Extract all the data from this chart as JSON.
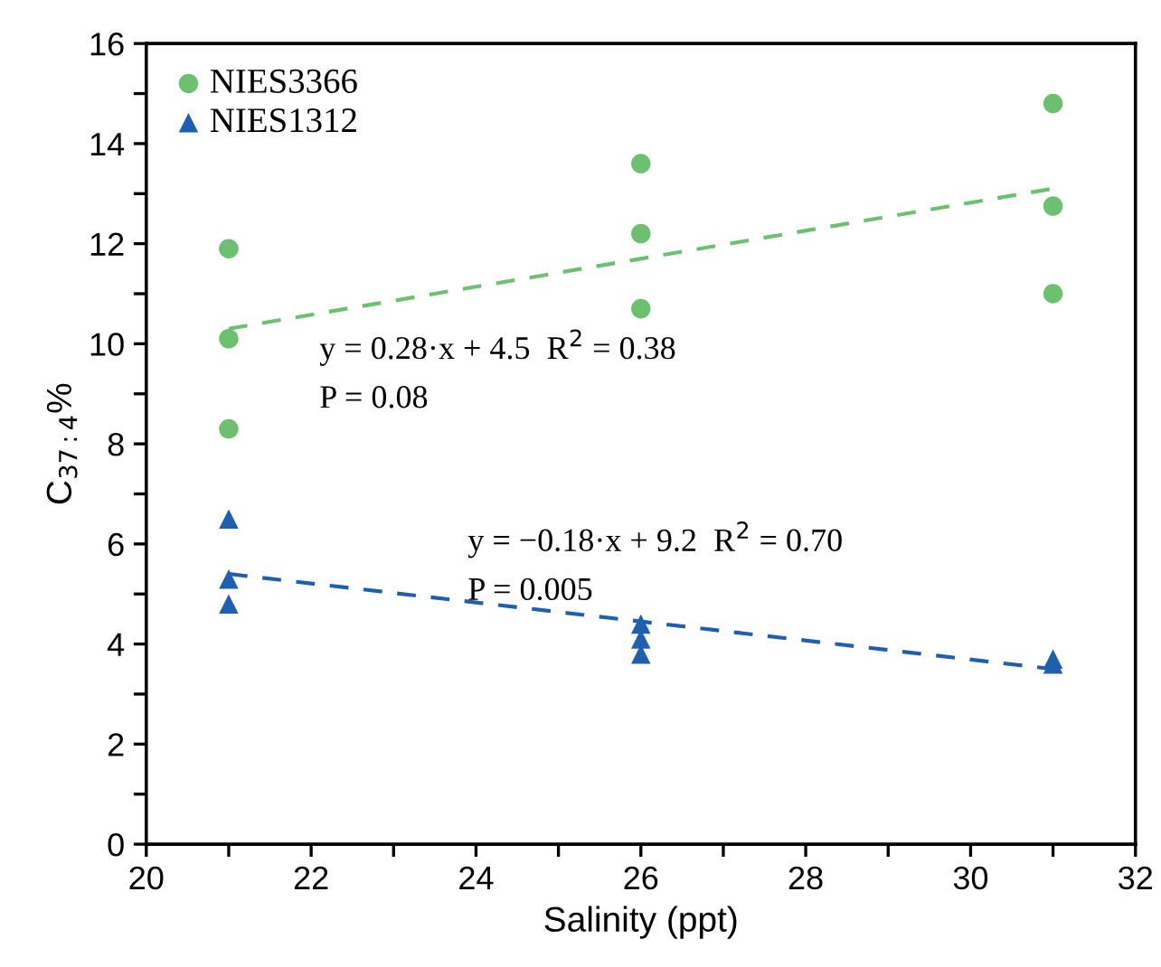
{
  "chart_data": {
    "type": "scatter",
    "xlabel": "Salinity (ppt)",
    "ylabel": "C$_{37:4}$%",
    "xlim": [
      20,
      32
    ],
    "ylim": [
      0,
      16
    ],
    "xticks": [
      20,
      {
        "value": 21,
        "label": null
      },
      22,
      {
        "value": 23,
        "label": null
      },
      24,
      {
        "value": 25,
        "label": null
      },
      26,
      {
        "value": 27,
        "label": null
      },
      28,
      {
        "value": 29,
        "label": null
      },
      30,
      {
        "value": 31,
        "label": null
      },
      32
    ],
    "yticks": [
      0,
      {
        "value": 1,
        "label": null
      },
      2,
      {
        "value": 3,
        "label": null
      },
      4,
      {
        "value": 5,
        "label": null
      },
      6,
      {
        "value": 7,
        "label": null
      },
      8,
      {
        "value": 9,
        "label": null
      },
      10,
      {
        "value": 11,
        "label": null
      },
      12,
      {
        "value": 13,
        "label": null
      },
      14,
      {
        "value": 15,
        "label": null
      },
      16
    ],
    "grid": false,
    "legend": "top left",
    "series": [
      {
        "name": "NIES3366",
        "marker": "circle",
        "color": "#6cc070",
        "x": [
          21,
          21,
          21,
          26,
          26,
          26,
          31,
          31,
          31
        ],
        "values": [
          11.9,
          10.1,
          8.3,
          13.6,
          12.2,
          10.7,
          14.8,
          12.75,
          11.0
        ]
      },
      {
        "name": "NIES1312",
        "marker": "triangle",
        "color": "#1f5fb0",
        "x": [
          21,
          21,
          21,
          26,
          26,
          26,
          31,
          31
        ],
        "values": [
          6.5,
          5.3,
          4.8,
          4.4,
          4.1,
          3.8,
          3.7,
          3.6
        ]
      },
      {
        "type": "line",
        "line_style": "dashed",
        "marker": "none",
        "color": "#6cc070",
        "x": [
          21,
          31
        ],
        "values": [
          10.3,
          13.1
        ]
      },
      {
        "type": "line",
        "line_style": "dashed",
        "marker": "none",
        "color": "#1f5fb0",
        "x": [
          21,
          31
        ],
        "values": [
          5.4,
          3.5
        ]
      }
    ],
    "annotations": [
      "y = 0.28·x + 4.5  R$^{2}$ = 0.38",
      "P = 0.08",
      "y = −0.18·x + 9.2  R$^{2}$ = 0.70",
      "P = 0.005"
    ]
  }
}
